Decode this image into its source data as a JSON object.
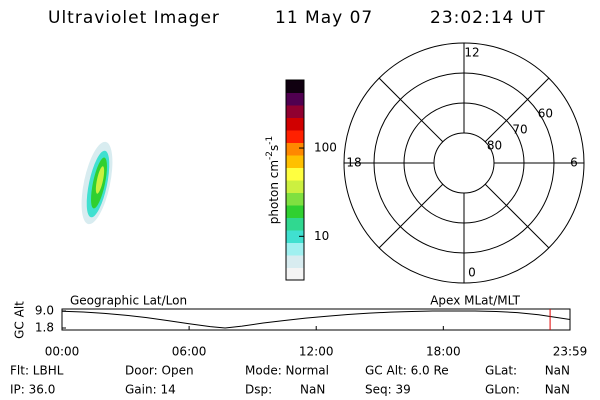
{
  "header": {
    "title": "Ultraviolet Imager",
    "date": "11 May 07",
    "time": "23:02:14 UT"
  },
  "chart_data": [
    {
      "type": "colorbar",
      "label_parts": [
        "photon cm",
        "-2",
        "s",
        "-1"
      ],
      "log": true,
      "clim": [
        3.2,
        590
      ],
      "ticks": [
        10,
        100
      ],
      "colors": [
        "#f4f4f4",
        "#d8ecf0",
        "#a0f0f0",
        "#40e0d0",
        "#30d890",
        "#30d030",
        "#80e040",
        "#ccf040",
        "#ffff40",
        "#ffc000",
        "#ff8800",
        "#ff2000",
        "#d00000",
        "#900030",
        "#500050",
        "#100010"
      ]
    },
    {
      "type": "polar",
      "rlim": [
        90,
        50
      ],
      "rticks": [
        80,
        70,
        60
      ],
      "theta_ticks": [
        12,
        6,
        0,
        18
      ]
    },
    {
      "type": "line",
      "left_label": "Geographic Lat/Lon",
      "right_label": "Apex MLat/MLT",
      "ylabel": "GC Alt",
      "color": "#000000",
      "x": [
        0,
        1,
        2,
        3,
        4,
        5,
        6,
        7,
        7.7,
        8.5,
        9.5,
        10.5,
        11.5,
        12.5,
        13.5,
        14.5,
        15.5,
        16.5,
        17.5,
        18.5,
        19.5,
        20.5,
        21.5,
        22.5,
        23.98
      ],
      "values": [
        8.9,
        8.6,
        8.0,
        7.2,
        6.2,
        4.9,
        3.6,
        2.4,
        1.8,
        2.6,
        3.9,
        5.0,
        6.0,
        6.8,
        7.5,
        8.1,
        8.5,
        8.8,
        9.0,
        9.0,
        9.0,
        8.8,
        8.3,
        7.4,
        5.4
      ],
      "xlim": [
        0,
        23.98
      ],
      "ylim": [
        1.8,
        9.0
      ],
      "xticks": [
        {
          "value": 0,
          "label": "00:00"
        },
        {
          "value": 6,
          "label": "06:00"
        },
        {
          "value": 12,
          "label": "12:00"
        },
        {
          "value": 18,
          "label": "18:00"
        },
        {
          "value": 23.98,
          "label": "23:59"
        }
      ],
      "yticks": [
        1.8,
        {
          "value": 9,
          "label": "9.0"
        }
      ],
      "cursor": 23.04,
      "cursor_color": "#e00000"
    }
  ],
  "footer": {
    "rows": [
      [
        "Flt: LBHL",
        "Door: Open",
        "Mode: Normal",
        "GC Alt: 6.0 Re",
        "GLat:",
        "NaN"
      ],
      [
        "IP: 36.0",
        "Gain: 14",
        "Dsp:",
        "NaN",
        "Seq: 39",
        "GLon:",
        "NaN"
      ]
    ]
  }
}
